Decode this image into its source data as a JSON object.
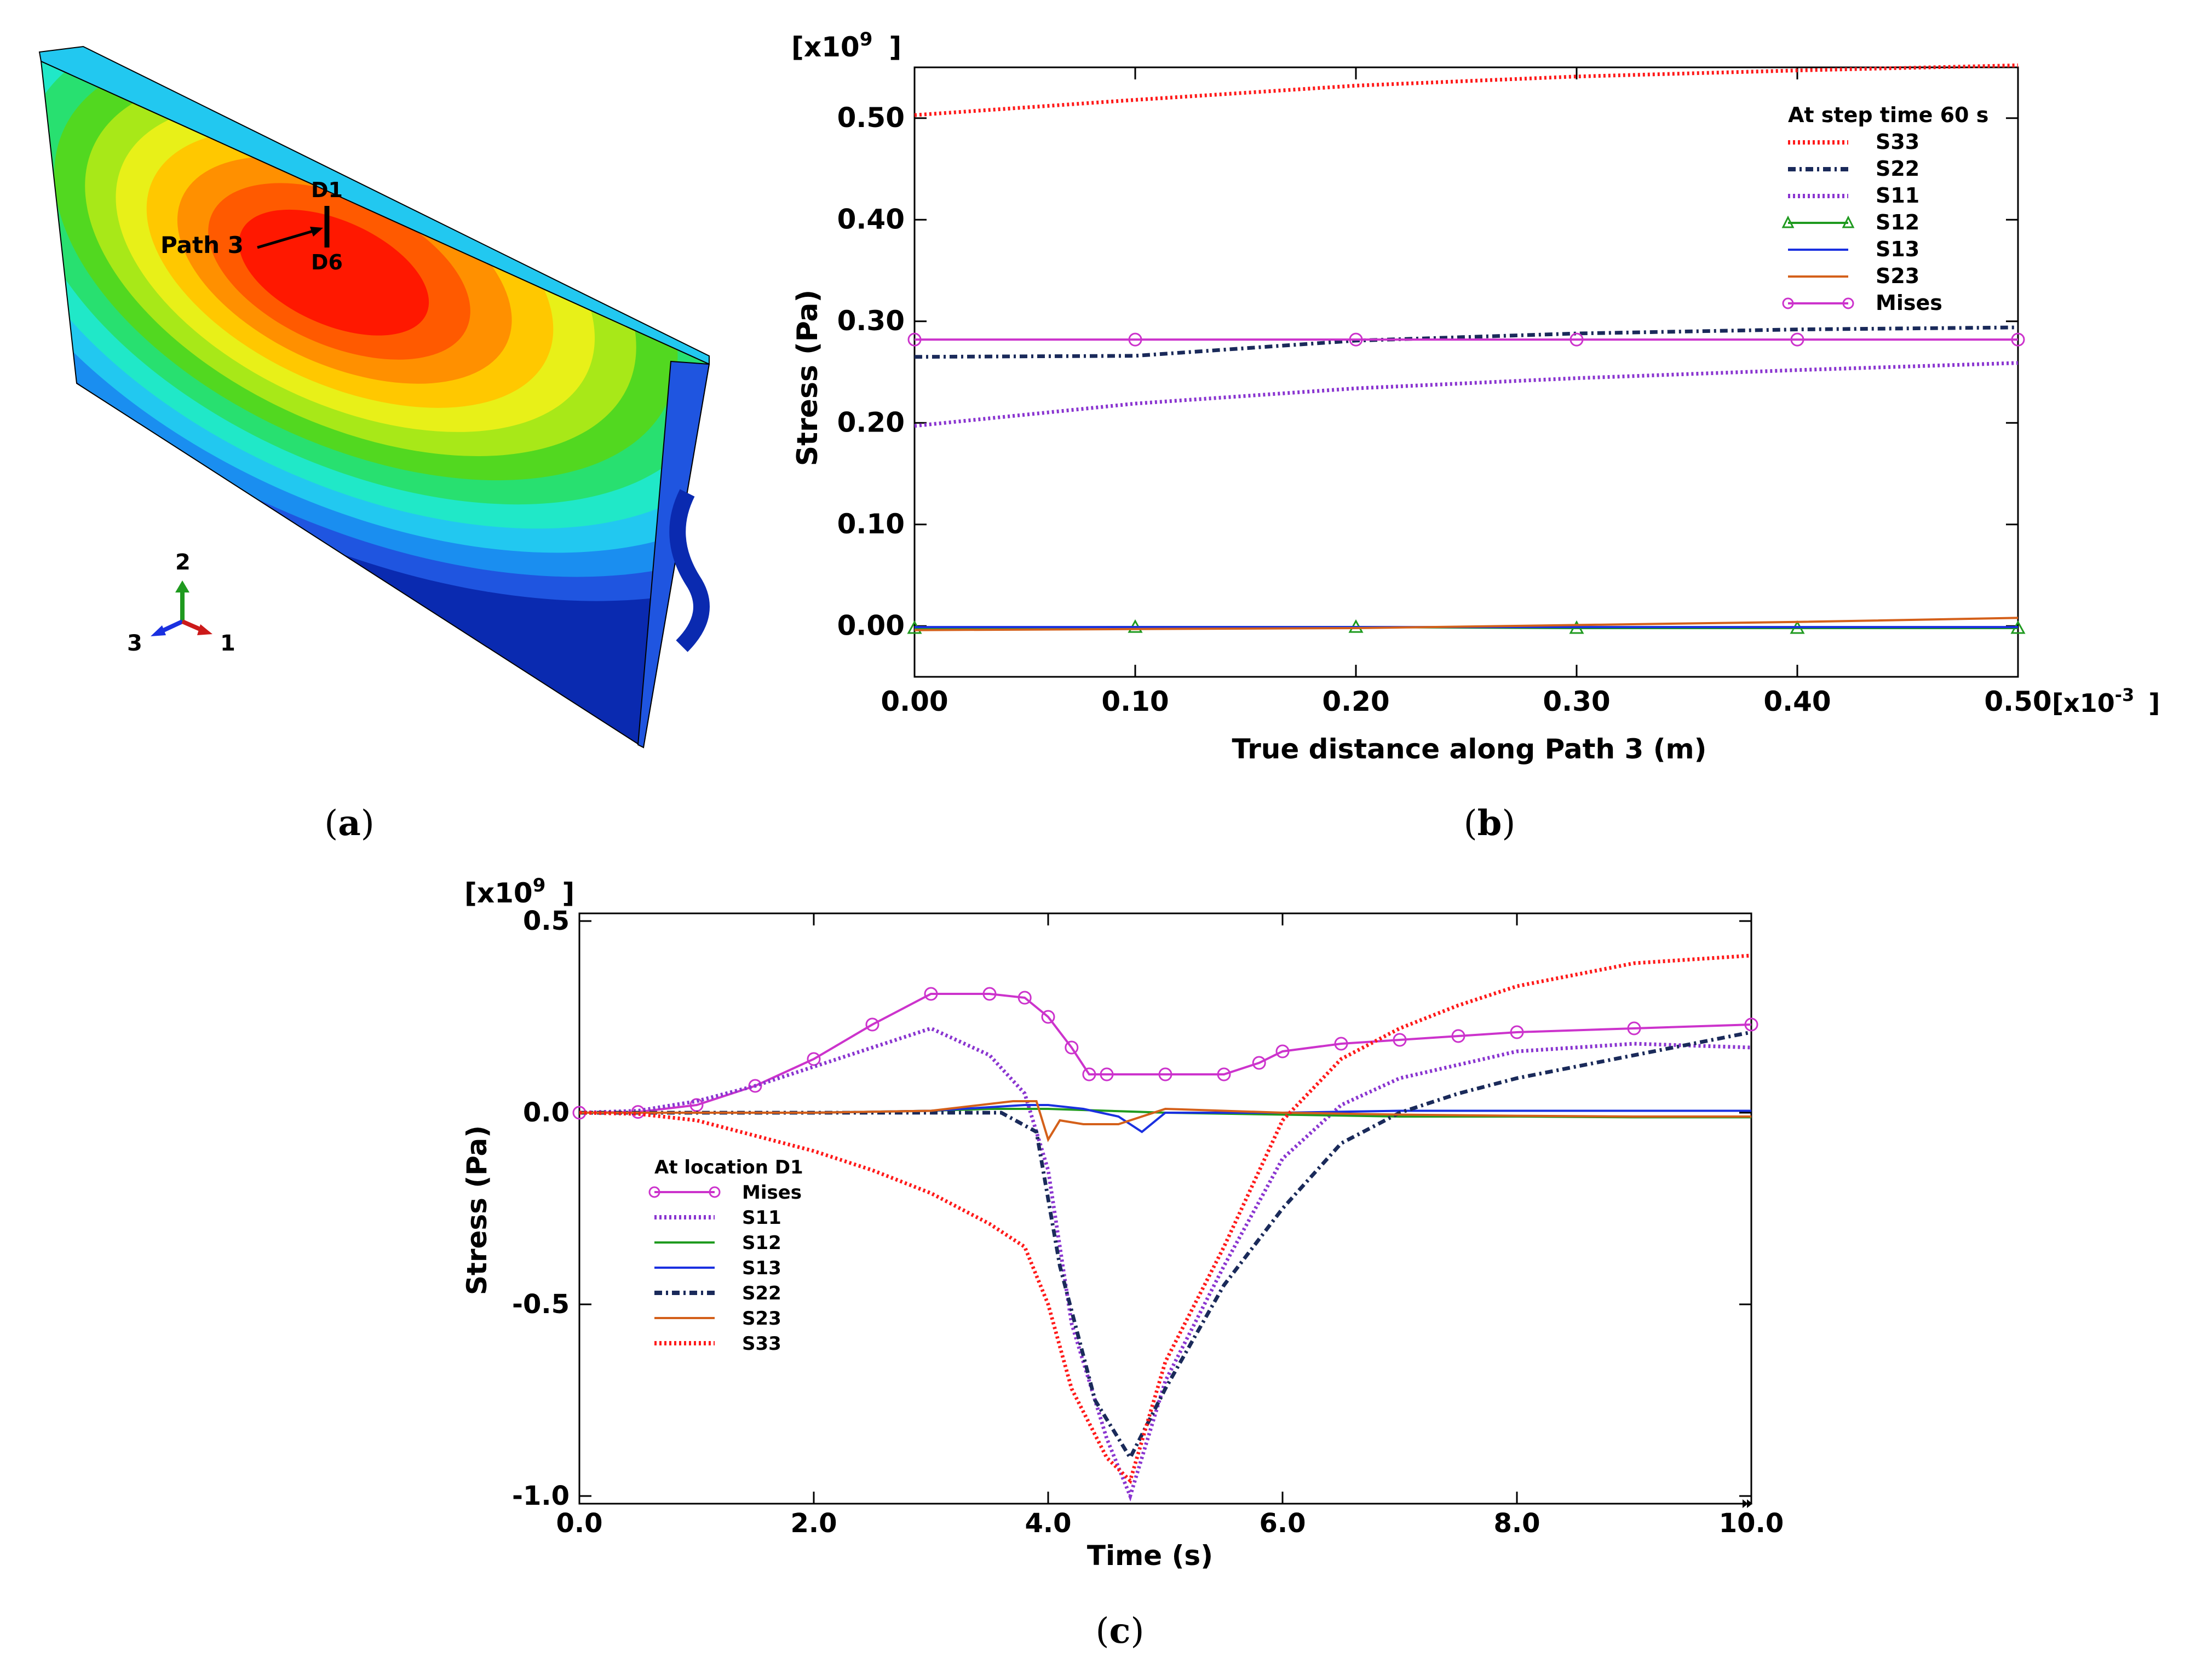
{
  "colors": {
    "S33": "#ff1a1a",
    "S22": "#1a2a5a",
    "S11": "#8a35d0",
    "S12": "#1f9a1f",
    "S13": "#1a30e0",
    "S23": "#d4601a",
    "Mises": "#cc33cc",
    "contour": [
      "#0a2ab0",
      "#1f55e0",
      "#1a8ef0",
      "#22c8f0",
      "#20e8c8",
      "#28e070",
      "#52d820",
      "#a8e818",
      "#e8f018",
      "#ffc800",
      "#ff9000",
      "#ff5a00",
      "#ff1800"
    ]
  },
  "panel_a": {
    "path_label": "Path 3",
    "d1_label": "D1",
    "d6_label": "D6",
    "axis_labels": {
      "a2": "2",
      "a3": "3",
      "a1": "1"
    },
    "caption_open": "(",
    "caption_letter": "a",
    "caption_close": ")"
  },
  "panel_b": {
    "caption_open": "(",
    "caption_letter": "b",
    "caption_close": ")"
  },
  "panel_c": {
    "caption_open": "(",
    "caption_letter": "c",
    "caption_close": ")"
  },
  "chart_data": [
    {
      "id": "b",
      "type": "line",
      "title": "",
      "legend_title": "At step time 60 s",
      "legend_position": "top-right",
      "xlabel": "True distance along Path 3 (m)",
      "ylabel": "Stress (Pa)",
      "x_multiplier": "[x10",
      "x_multiplier_exp": "-3",
      "x_multiplier_close": "]",
      "y_multiplier": "[x10",
      "y_multiplier_exp": "9",
      "y_multiplier_close": "]",
      "xlim": [
        0.0,
        0.5
      ],
      "ylim": [
        -0.05,
        0.55
      ],
      "xticks": [
        0.0,
        0.1,
        0.2,
        0.3,
        0.4,
        0.5
      ],
      "xtick_labels": [
        "0.00",
        "0.10",
        "0.20",
        "0.30",
        "0.40",
        "0.50"
      ],
      "yticks": [
        0.0,
        0.1,
        0.2,
        0.3,
        0.4,
        0.5
      ],
      "ytick_labels": [
        "0.00",
        "0.10",
        "0.20",
        "0.30",
        "0.40",
        "0.50"
      ],
      "grid": false,
      "series": [
        {
          "name": "S33",
          "style": "dotted",
          "x": [
            0,
            0.1,
            0.2,
            0.3,
            0.4,
            0.5
          ],
          "values": [
            0.503,
            0.518,
            0.532,
            0.541,
            0.547,
            0.552
          ]
        },
        {
          "name": "S22",
          "style": "dashdot",
          "x": [
            0,
            0.1,
            0.2,
            0.3,
            0.4,
            0.5
          ],
          "values": [
            0.265,
            0.266,
            0.281,
            0.288,
            0.292,
            0.294
          ]
        },
        {
          "name": "S11",
          "style": "dotted",
          "x": [
            0,
            0.1,
            0.2,
            0.3,
            0.4,
            0.5
          ],
          "values": [
            0.197,
            0.219,
            0.234,
            0.244,
            0.252,
            0.259
          ]
        },
        {
          "name": "S12",
          "style": "solid",
          "marker": "triangle",
          "x": [
            0,
            0.1,
            0.2,
            0.3,
            0.4,
            0.5
          ],
          "values": [
            -0.002,
            -0.001,
            -0.001,
            -0.002,
            -0.002,
            -0.002
          ]
        },
        {
          "name": "S13",
          "style": "solid",
          "x": [
            0,
            0.1,
            0.2,
            0.3,
            0.4,
            0.5
          ],
          "values": [
            -0.001,
            -0.001,
            -0.001,
            -0.001,
            -0.001,
            -0.001
          ]
        },
        {
          "name": "S23",
          "style": "solid",
          "x": [
            0,
            0.1,
            0.2,
            0.3,
            0.4,
            0.5
          ],
          "values": [
            -0.004,
            -0.003,
            -0.002,
            0.001,
            0.004,
            0.008
          ]
        },
        {
          "name": "Mises",
          "style": "solid",
          "marker": "circle",
          "x": [
            0,
            0.1,
            0.2,
            0.3,
            0.4,
            0.5
          ],
          "values": [
            0.282,
            0.282,
            0.282,
            0.282,
            0.282,
            0.282
          ]
        }
      ]
    },
    {
      "id": "c",
      "type": "line",
      "title": "",
      "legend_title": "At location D1",
      "legend_position": "center-left",
      "xlabel": "Time (s)",
      "ylabel": "Stress (Pa)",
      "y_multiplier": "[x10",
      "y_multiplier_exp": "9",
      "y_multiplier_close": "]",
      "xlim": [
        0.0,
        10.0
      ],
      "ylim": [
        -1.02,
        0.52
      ],
      "xticks": [
        0,
        2,
        4,
        6,
        8,
        10
      ],
      "xtick_labels": [
        "0.0",
        "2.0",
        "4.0",
        "6.0",
        "8.0",
        "10.0"
      ],
      "yticks": [
        -1.0,
        -0.5,
        0.0,
        0.5
      ],
      "ytick_labels": [
        "-1.0",
        "-0.5",
        "0.0",
        "0.5"
      ],
      "grid": false,
      "series": [
        {
          "name": "Mises",
          "style": "solid",
          "marker": "circle",
          "x": [
            0,
            0.5,
            1.0,
            1.5,
            2.0,
            2.5,
            3.0,
            3.5,
            3.8,
            4.0,
            4.2,
            4.35,
            4.5,
            5.0,
            5.5,
            5.8,
            6.0,
            6.5,
            7.0,
            7.5,
            8.0,
            9.0,
            10.0
          ],
          "values": [
            0,
            0.002,
            0.02,
            0.07,
            0.14,
            0.23,
            0.31,
            0.31,
            0.3,
            0.25,
            0.17,
            0.1,
            0.1,
            0.1,
            0.1,
            0.13,
            0.16,
            0.18,
            0.19,
            0.2,
            0.21,
            0.22,
            0.23
          ]
        },
        {
          "name": "S11",
          "style": "dotted",
          "x": [
            0,
            0.5,
            1.0,
            1.5,
            2.0,
            2.5,
            3.0,
            3.5,
            3.8,
            4.0,
            4.2,
            4.5,
            4.7,
            5.0,
            5.5,
            6.0,
            6.5,
            7.0,
            8.0,
            9.0,
            10.0
          ],
          "values": [
            0,
            0.005,
            0.03,
            0.07,
            0.12,
            0.17,
            0.22,
            0.15,
            0.05,
            -0.15,
            -0.55,
            -0.85,
            -1.0,
            -0.7,
            -0.4,
            -0.12,
            0.02,
            0.09,
            0.16,
            0.18,
            0.17
          ]
        },
        {
          "name": "S12",
          "style": "solid",
          "x": [
            0,
            1,
            2,
            3,
            3.5,
            4.0,
            4.5,
            5.0,
            6.0,
            7.0,
            8.0,
            9.0,
            10.0
          ],
          "values": [
            0,
            0,
            0,
            0.005,
            0.01,
            0.01,
            0.005,
            0.0,
            -0.005,
            -0.01,
            -0.01,
            -0.012,
            -0.012
          ]
        },
        {
          "name": "S13",
          "style": "solid",
          "x": [
            0,
            1,
            2,
            3,
            3.8,
            4.0,
            4.3,
            4.6,
            4.8,
            5.0,
            6.0,
            7.0,
            8.0,
            9.0,
            10.0
          ],
          "values": [
            0,
            0,
            0,
            0.005,
            0.02,
            0.02,
            0.01,
            -0.01,
            -0.05,
            0.0,
            0.0,
            0.005,
            0.005,
            0.005,
            0.005
          ]
        },
        {
          "name": "S22",
          "style": "dashdot",
          "x": [
            0,
            1,
            2,
            3,
            3.6,
            3.9,
            4.1,
            4.4,
            4.7,
            5.0,
            5.5,
            6.0,
            6.5,
            7.0,
            7.5,
            8.0,
            9.0,
            10.0
          ],
          "values": [
            0,
            0,
            0,
            0.0,
            0.0,
            -0.05,
            -0.4,
            -0.75,
            -0.9,
            -0.72,
            -0.45,
            -0.25,
            -0.08,
            0.0,
            0.05,
            0.09,
            0.15,
            0.21
          ]
        },
        {
          "name": "S23",
          "style": "solid",
          "x": [
            0,
            1,
            2,
            3,
            3.7,
            3.9,
            4.0,
            4.1,
            4.3,
            4.6,
            5.0,
            6.0,
            7.0,
            8.0,
            9.0,
            10.0
          ],
          "values": [
            0,
            0,
            0,
            0.005,
            0.03,
            0.03,
            -0.07,
            -0.02,
            -0.03,
            -0.03,
            0.01,
            0.0,
            -0.005,
            -0.008,
            -0.01,
            -0.01
          ]
        },
        {
          "name": "S33",
          "style": "dotted",
          "x": [
            0,
            0.5,
            1.0,
            1.5,
            2.0,
            2.5,
            3.0,
            3.5,
            3.8,
            4.0,
            4.2,
            4.5,
            4.7,
            5.0,
            5.5,
            6.0,
            6.5,
            7.0,
            7.5,
            8.0,
            8.5,
            9.0,
            10.0
          ],
          "values": [
            0,
            -0.003,
            -0.02,
            -0.06,
            -0.1,
            -0.15,
            -0.21,
            -0.29,
            -0.35,
            -0.5,
            -0.72,
            -0.9,
            -0.96,
            -0.65,
            -0.35,
            -0.02,
            0.14,
            0.22,
            0.28,
            0.33,
            0.36,
            0.39,
            0.41
          ]
        }
      ]
    }
  ]
}
